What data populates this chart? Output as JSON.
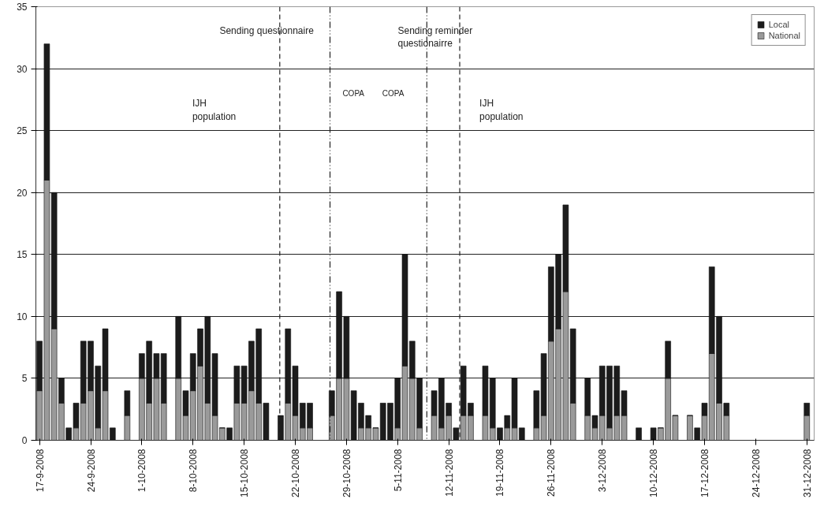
{
  "chart_data": {
    "type": "bar",
    "stacked": true,
    "x": [
      "2008-09-17",
      "2008-09-18",
      "2008-09-19",
      "2008-09-20",
      "2008-09-21",
      "2008-09-22",
      "2008-09-23",
      "2008-09-24",
      "2008-09-25",
      "2008-09-26",
      "2008-09-27",
      "2008-09-28",
      "2008-09-29",
      "2008-09-30",
      "2008-10-01",
      "2008-10-02",
      "2008-10-03",
      "2008-10-04",
      "2008-10-05",
      "2008-10-06",
      "2008-10-07",
      "2008-10-08",
      "2008-10-09",
      "2008-10-10",
      "2008-10-11",
      "2008-10-12",
      "2008-10-13",
      "2008-10-14",
      "2008-10-15",
      "2008-10-16",
      "2008-10-17",
      "2008-10-18",
      "2008-10-19",
      "2008-10-20",
      "2008-10-21",
      "2008-10-22",
      "2008-10-23",
      "2008-10-24",
      "2008-10-25",
      "2008-10-26",
      "2008-10-27",
      "2008-10-28",
      "2008-10-29",
      "2008-10-30",
      "2008-10-31",
      "2008-11-01",
      "2008-11-02",
      "2008-11-03",
      "2008-11-04",
      "2008-11-05",
      "2008-11-06",
      "2008-11-07",
      "2008-11-08",
      "2008-11-09",
      "2008-11-10",
      "2008-11-11",
      "2008-11-12",
      "2008-11-13",
      "2008-11-14",
      "2008-11-15",
      "2008-11-16",
      "2008-11-17",
      "2008-11-18",
      "2008-11-19",
      "2008-11-20",
      "2008-11-21",
      "2008-11-22",
      "2008-11-23",
      "2008-11-24",
      "2008-11-25",
      "2008-11-26",
      "2008-11-27",
      "2008-11-28",
      "2008-11-29",
      "2008-11-30",
      "2008-12-01",
      "2008-12-02",
      "2008-12-03",
      "2008-12-04",
      "2008-12-05",
      "2008-12-06",
      "2008-12-07",
      "2008-12-08",
      "2008-12-09",
      "2008-12-10",
      "2008-12-11",
      "2008-12-12",
      "2008-12-13",
      "2008-12-14",
      "2008-12-15",
      "2008-12-16",
      "2008-12-17",
      "2008-12-18",
      "2008-12-19",
      "2008-12-20",
      "2008-12-21",
      "2008-12-22",
      "2008-12-23",
      "2008-12-24",
      "2008-12-25",
      "2008-12-26",
      "2008-12-27",
      "2008-12-28",
      "2008-12-29",
      "2008-12-30",
      "2008-12-31"
    ],
    "series": [
      {
        "name": "National",
        "color": "#9a9a9a",
        "values": [
          4,
          21,
          9,
          3,
          0,
          1,
          3,
          4,
          1,
          4,
          0,
          0,
          2,
          0,
          5,
          3,
          5,
          3,
          0,
          5,
          2,
          4,
          6,
          3,
          2,
          1,
          0,
          3,
          3,
          4,
          3,
          0,
          0,
          0,
          3,
          2,
          1,
          1,
          0,
          0,
          2,
          5,
          5,
          0,
          1,
          1,
          1,
          0,
          0,
          1,
          6,
          5,
          1,
          0,
          2,
          1,
          2,
          0,
          2,
          2,
          0,
          2,
          1,
          0,
          1,
          1,
          0,
          0,
          1,
          2,
          8,
          9,
          12,
          3,
          0,
          2,
          1,
          2,
          1,
          2,
          2,
          0,
          0,
          0,
          0,
          1,
          5,
          2,
          0,
          2,
          0,
          2,
          7,
          3,
          2,
          0,
          0,
          0,
          0,
          0,
          0,
          0,
          0,
          0,
          0,
          2
        ]
      },
      {
        "name": "Local",
        "color": "#1c1c1c",
        "values": [
          4,
          11,
          11,
          2,
          1,
          2,
          5,
          4,
          5,
          5,
          1,
          0,
          2,
          0,
          2,
          5,
          2,
          4,
          0,
          5,
          2,
          3,
          3,
          7,
          5,
          0,
          1,
          3,
          3,
          4,
          6,
          3,
          0,
          2,
          6,
          4,
          2,
          2,
          0,
          0,
          2,
          7,
          5,
          4,
          2,
          1,
          0,
          3,
          3,
          4,
          9,
          3,
          4,
          0,
          2,
          4,
          1,
          1,
          4,
          1,
          0,
          4,
          4,
          1,
          1,
          4,
          1,
          0,
          3,
          5,
          6,
          6,
          7,
          6,
          0,
          3,
          1,
          4,
          5,
          4,
          2,
          0,
          1,
          0,
          1,
          0,
          3,
          0,
          0,
          0,
          1,
          1,
          7,
          7,
          1,
          0,
          0,
          0,
          0,
          0,
          0,
          0,
          0,
          0,
          0,
          1
        ]
      }
    ],
    "xlim": [
      "2008-09-16T12:00",
      "2009-01-01"
    ],
    "xticks": [
      {
        "value": "2008-09-17",
        "label": "17-9-2008"
      },
      {
        "value": "2008-09-24",
        "label": "24-9-2008"
      },
      {
        "value": "2008-10-01",
        "label": "1-10-2008"
      },
      {
        "value": "2008-10-08",
        "label": "8-10-2008"
      },
      {
        "value": "2008-10-15",
        "label": "15-10-2008"
      },
      {
        "value": "2008-10-22",
        "label": "22-10-2008"
      },
      {
        "value": "2008-10-29",
        "label": "29-10-2008"
      },
      {
        "value": "2008-11-05",
        "label": "5-11-2008"
      },
      {
        "value": "2008-11-12",
        "label": "12-11-2008"
      },
      {
        "value": "2008-11-19",
        "label": "19-11-2008"
      },
      {
        "value": "2008-11-26",
        "label": "26-11-2008"
      },
      {
        "value": "2008-12-03",
        "label": "3-12-2008"
      },
      {
        "value": "2008-12-10",
        "label": "10-12-2008"
      },
      {
        "value": "2008-12-17",
        "label": "17-12-2008"
      },
      {
        "value": "2008-12-24",
        "label": "24-12-2008"
      },
      {
        "value": "2008-12-31",
        "label": "31-12-2008"
      }
    ],
    "ylim": [
      0,
      35
    ],
    "yticks": [
      0,
      5,
      10,
      15,
      20,
      25,
      30,
      35
    ],
    "grid": "y",
    "legend": "top right",
    "ref_lines": [
      {
        "axis": "x",
        "value": "2008-10-19T21:00",
        "line_style": "dashed"
      },
      {
        "axis": "x",
        "value": "2008-10-26T18:00",
        "line_style": "dashdot"
      },
      {
        "axis": "x",
        "value": "2008-11-09",
        "line_style": "dashdot"
      },
      {
        "axis": "x",
        "value": "2008-11-13T12:00",
        "line_style": "dashed"
      }
    ],
    "annotations": [
      "Sending questionnaire",
      "Sending reminder\nquestionairre",
      "IJH\npopulation",
      "IJH\npopulation",
      "COPA",
      "COPA"
    ]
  }
}
